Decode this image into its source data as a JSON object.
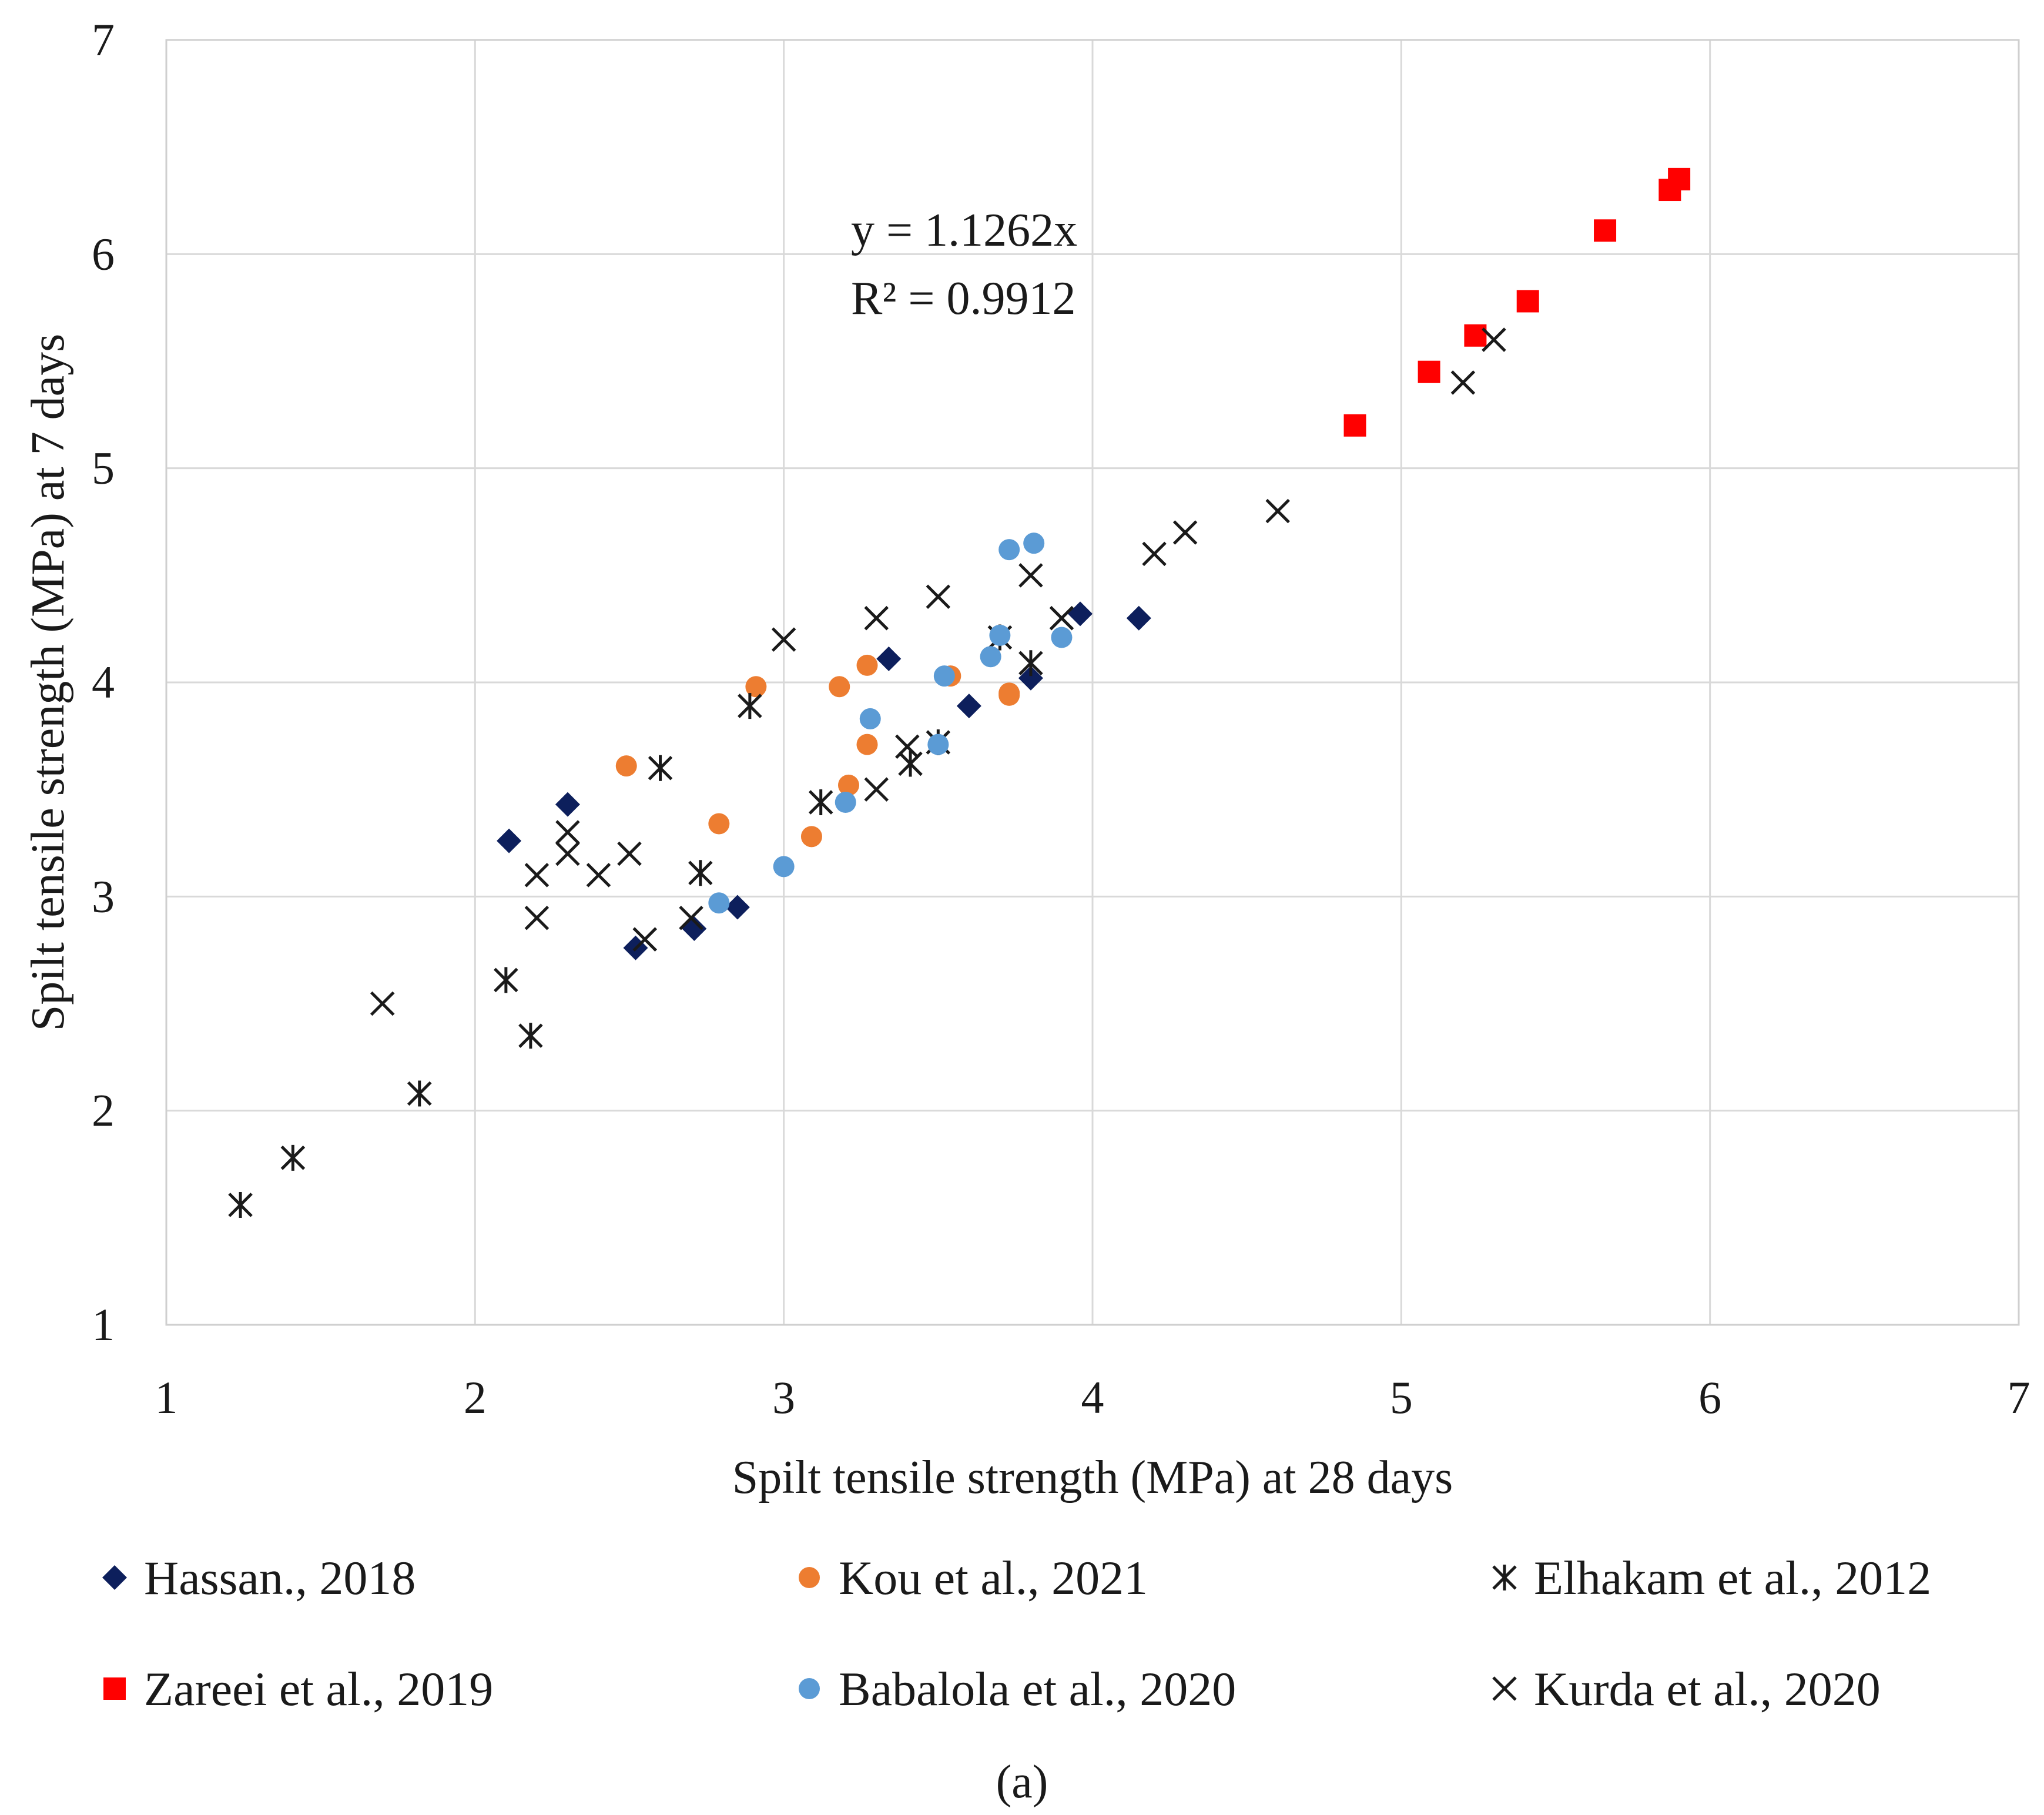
{
  "chart_data": {
    "type": "scatter",
    "xlabel": "Spilt tensile strength (MPa) at 28 days",
    "ylabel": "Spilt tensile strength (MPa) at 7 days",
    "xlim": [
      1,
      7
    ],
    "ylim": [
      1,
      7
    ],
    "xticks": [
      "1",
      "2",
      "3",
      "4",
      "5",
      "6",
      "7"
    ],
    "yticks": [
      "1",
      "2",
      "3",
      "4",
      "5",
      "6",
      "7"
    ],
    "grid": true,
    "legend_position": "bottom",
    "trendline": {
      "equation": "y = 1.1262x",
      "r2": "R² = 0.9912"
    },
    "caption": "(a)",
    "series": [
      {
        "name": "Hassan., 2018",
        "marker": "diamond",
        "color": "#0d1f5c",
        "points": [
          [
            2.11,
            3.26
          ],
          [
            2.3,
            3.43
          ],
          [
            2.52,
            2.76
          ],
          [
            2.71,
            2.85
          ],
          [
            2.85,
            2.95
          ],
          [
            3.34,
            4.11
          ],
          [
            3.6,
            3.89
          ],
          [
            3.8,
            4.02
          ],
          [
            3.96,
            4.32
          ],
          [
            4.15,
            4.3
          ]
        ]
      },
      {
        "name": "Kou et al., 2021",
        "marker": "circle",
        "color": "#ed7d31",
        "points": [
          [
            2.49,
            3.61
          ],
          [
            2.79,
            3.34
          ],
          [
            2.91,
            3.98
          ],
          [
            3.09,
            3.28
          ],
          [
            3.18,
            3.98
          ],
          [
            3.21,
            3.52
          ],
          [
            3.27,
            3.71
          ],
          [
            3.27,
            4.08
          ],
          [
            3.54,
            4.03
          ],
          [
            3.73,
            3.95
          ],
          [
            3.73,
            3.94
          ]
        ]
      },
      {
        "name": "Elhakam et al., 2012",
        "marker": "star",
        "color": "#1a1a1a",
        "points": [
          [
            1.24,
            1.56
          ],
          [
            1.41,
            1.78
          ],
          [
            1.82,
            2.08
          ],
          [
            2.1,
            2.61
          ],
          [
            2.18,
            2.35
          ],
          [
            2.6,
            3.6
          ],
          [
            2.73,
            3.11
          ],
          [
            2.89,
            3.89
          ],
          [
            3.12,
            3.44
          ],
          [
            3.41,
            3.62
          ],
          [
            3.5,
            3.72
          ],
          [
            3.7,
            4.21
          ],
          [
            3.8,
            4.09
          ]
        ]
      },
      {
        "name": "Zareei et al., 2019",
        "marker": "square",
        "color": "#ff0000",
        "points": [
          [
            4.85,
            5.2
          ],
          [
            5.09,
            5.45
          ],
          [
            5.24,
            5.62
          ],
          [
            5.41,
            5.78
          ],
          [
            5.66,
            6.11
          ],
          [
            5.87,
            6.3
          ],
          [
            5.9,
            6.35
          ]
        ]
      },
      {
        "name": "Babalola et al., 2020",
        "marker": "circle",
        "color": "#5b9bd5",
        "points": [
          [
            2.79,
            2.97
          ],
          [
            3.0,
            3.14
          ],
          [
            3.2,
            3.44
          ],
          [
            3.28,
            3.83
          ],
          [
            3.5,
            3.71
          ],
          [
            3.52,
            4.03
          ],
          [
            3.67,
            4.12
          ],
          [
            3.7,
            4.22
          ],
          [
            3.73,
            4.62
          ],
          [
            3.81,
            4.65
          ],
          [
            3.9,
            4.21
          ]
        ]
      },
      {
        "name": "Kurda et al., 2020",
        "marker": "x",
        "color": "#1a1a1a",
        "points": [
          [
            1.7,
            2.5
          ],
          [
            2.2,
            2.9
          ],
          [
            2.2,
            3.1
          ],
          [
            2.3,
            3.2
          ],
          [
            2.3,
            3.3
          ],
          [
            2.4,
            3.1
          ],
          [
            2.5,
            3.2
          ],
          [
            2.55,
            2.8
          ],
          [
            2.7,
            2.9
          ],
          [
            3.0,
            4.2
          ],
          [
            3.3,
            4.3
          ],
          [
            3.3,
            3.5
          ],
          [
            3.4,
            3.7
          ],
          [
            3.5,
            4.4
          ],
          [
            3.8,
            4.5
          ],
          [
            3.9,
            4.3
          ],
          [
            4.2,
            4.6
          ],
          [
            4.3,
            4.7
          ],
          [
            4.6,
            4.8
          ],
          [
            5.2,
            5.4
          ],
          [
            5.3,
            5.6
          ]
        ]
      }
    ]
  }
}
